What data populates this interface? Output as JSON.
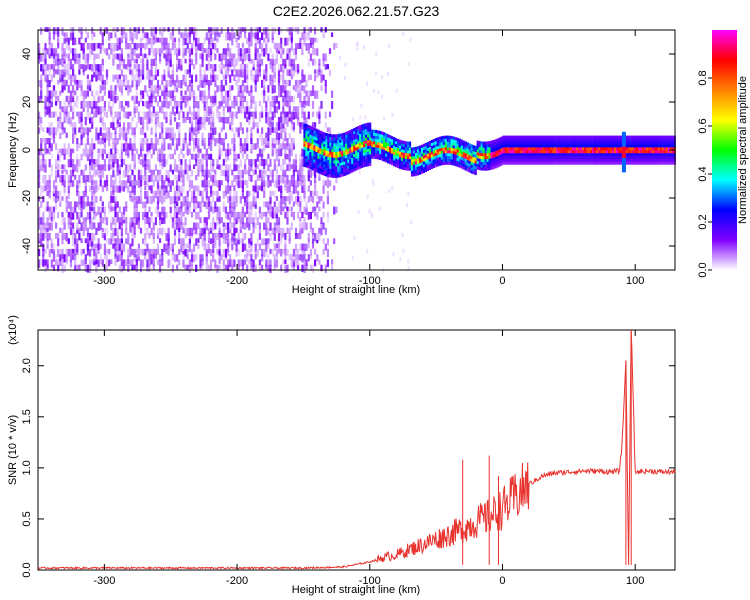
{
  "title": "C2E2.2026.062.21.57.G23",
  "chart_data": [
    {
      "type": "heatmap",
      "name": "spectrogram",
      "xlabel": "Height of straight line (km)",
      "ylabel": "Frequency (Hz)",
      "xlim": [
        -350,
        130
      ],
      "ylim": [
        -50,
        50
      ],
      "xticks": [
        -300,
        -200,
        -100,
        0,
        100
      ],
      "xtick_labels": [
        "-300",
        "-200",
        "-100",
        "0",
        "100"
      ],
      "yticks": [
        -40,
        -20,
        0,
        20,
        40
      ],
      "ytick_labels": [
        "-40",
        "-20",
        "0",
        "20",
        "40"
      ],
      "colorbar": {
        "label": "Normalized spectral amplitude",
        "range": [
          0,
          1
        ],
        "ticks": [
          0.0,
          0.2,
          0.4,
          0.6,
          0.8
        ],
        "tick_labels": [
          "0.0",
          "0.2",
          "0.4",
          "0.6",
          "0.8"
        ],
        "colormap": [
          "#ffffff",
          "#8000ff",
          "#0000ff",
          "#00ffff",
          "#00ff00",
          "#ffff00",
          "#ff8000",
          "#ff0000",
          "#ff00ff"
        ]
      },
      "features": {
        "noise_region_x": [
          -350,
          -125
        ],
        "carrier_start_x": -150,
        "carrier_freq_hz": 0,
        "carrier_width_hz": 6,
        "spike_x": 90
      }
    },
    {
      "type": "line",
      "name": "snr",
      "xlabel": "Height of straight line (km)",
      "ylabel": "SNR (10 * v/v)",
      "y_multiplier": "(x10⁴)",
      "xlim": [
        -350,
        130
      ],
      "ylim": [
        0,
        2.35
      ],
      "xticks": [
        -300,
        -200,
        -100,
        0,
        100
      ],
      "xtick_labels": [
        "-300",
        "-200",
        "-100",
        "0",
        "100"
      ],
      "yticks": [
        0.0,
        0.5,
        1.0,
        1.5,
        2.0
      ],
      "ytick_labels": [
        "0.0",
        "0.5",
        "1.0",
        "1.5",
        "2.0"
      ],
      "series": [
        {
          "name": "SNR",
          "color": "#e8322d",
          "x": [
            -350,
            -300,
            -250,
            -200,
            -150,
            -120,
            -100,
            -90,
            -80,
            -70,
            -60,
            -50,
            -40,
            -30,
            -20,
            -10,
            0,
            10,
            20,
            30,
            40,
            50,
            60,
            70,
            80,
            88,
            90,
            93,
            95,
            97,
            100,
            110,
            120,
            130
          ],
          "y": [
            0.02,
            0.02,
            0.02,
            0.02,
            0.02,
            0.03,
            0.08,
            0.12,
            0.15,
            0.2,
            0.25,
            0.3,
            0.35,
            0.4,
            0.47,
            0.52,
            0.6,
            0.72,
            0.84,
            0.92,
            0.95,
            0.96,
            0.97,
            0.97,
            0.96,
            0.97,
            1.2,
            2.05,
            0.05,
            2.4,
            0.96,
            0.97,
            0.96,
            0.96
          ]
        }
      ],
      "spikes": [
        {
          "x": -30,
          "y": 1.08
        },
        {
          "x": -10,
          "y": 1.12
        },
        {
          "x": -3,
          "y": 0.92
        },
        {
          "x": 93,
          "y": 2.05
        },
        {
          "x": 97,
          "y": 2.35
        }
      ]
    }
  ]
}
